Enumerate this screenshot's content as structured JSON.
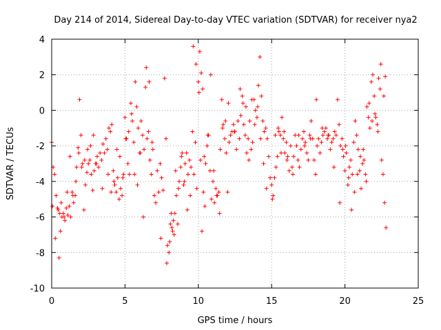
{
  "chart_data": {
    "type": "scatter",
    "title": "Day 214 of 2014, Sidereal Day-to-day VTEC variation (SDTVAR) for receiver nya2",
    "xlabel": "GPS time / hours",
    "ylabel": "SDTVAR / TECUs",
    "xlim": [
      0,
      25
    ],
    "ylim": [
      -10,
      4
    ],
    "xticks": [
      0,
      5,
      10,
      15,
      20,
      25
    ],
    "yticks": [
      -10,
      -8,
      -6,
      -4,
      -2,
      0,
      2,
      4
    ],
    "xtick_labels": [
      "0",
      "5",
      "10",
      "15",
      "20",
      "25"
    ],
    "ytick_labels": [
      "-10",
      "-8",
      "-6",
      "-4",
      "-2",
      "0",
      "2",
      "4"
    ],
    "grid": true,
    "marker": "+",
    "color": "#ff0000",
    "series": [
      {
        "name": "SDTVAR",
        "x": [
          0.0,
          0.1,
          0.2,
          0.3,
          0.4,
          0.5,
          0.6,
          0.7,
          0.8,
          0.9,
          1.0,
          1.1,
          1.2,
          1.3,
          1.4,
          1.5,
          1.6,
          1.7,
          1.8,
          1.9,
          2.0,
          2.1,
          2.2,
          2.3,
          2.4,
          2.5,
          2.6,
          2.7,
          2.8,
          2.9,
          3.0,
          3.1,
          3.2,
          3.3,
          3.4,
          3.5,
          3.6,
          3.7,
          3.8,
          3.9,
          4.0,
          4.1,
          4.2,
          4.3,
          4.4,
          4.5,
          4.6,
          4.7,
          4.8,
          4.9,
          5.0,
          5.1,
          5.2,
          5.3,
          5.4,
          5.5,
          5.6,
          5.7,
          5.8,
          5.9,
          6.0,
          6.1,
          6.2,
          6.3,
          6.4,
          6.5,
          6.6,
          6.7,
          6.8,
          6.9,
          7.0,
          7.1,
          7.2,
          7.3,
          7.4,
          7.5,
          7.6,
          7.7,
          7.8,
          7.9,
          8.0,
          8.1,
          8.2,
          8.3,
          8.4,
          8.5,
          8.6,
          8.7,
          8.8,
          8.9,
          9.0,
          9.1,
          9.2,
          9.3,
          9.4,
          9.5,
          9.6,
          9.7,
          9.8,
          9.9,
          10.0,
          10.1,
          10.2,
          10.3,
          10.4,
          10.5,
          10.6,
          10.7,
          10.8,
          10.9,
          11.0,
          11.1,
          11.2,
          11.3,
          11.4,
          11.5,
          11.6,
          11.7,
          11.8,
          11.9,
          12.0,
          12.1,
          12.2,
          12.3,
          12.4,
          12.5,
          12.6,
          12.7,
          12.8,
          12.9,
          13.0,
          13.1,
          13.2,
          13.3,
          13.4,
          13.5,
          13.6,
          13.7,
          13.8,
          13.9,
          14.0,
          14.1,
          14.2,
          14.3,
          14.4,
          14.5,
          14.6,
          14.7,
          14.8,
          14.9,
          15.0,
          15.1,
          15.2,
          15.3,
          15.4,
          15.5,
          15.6,
          15.7,
          15.8,
          15.9,
          16.0,
          16.1,
          16.2,
          16.3,
          16.4,
          16.5,
          16.6,
          16.7,
          16.8,
          16.9,
          17.0,
          17.1,
          17.2,
          17.3,
          17.4,
          17.5,
          17.6,
          17.7,
          17.8,
          17.9,
          18.0,
          18.1,
          18.2,
          18.3,
          18.4,
          18.5,
          18.6,
          18.7,
          18.8,
          18.9,
          19.0,
          19.1,
          19.2,
          19.3,
          19.4,
          19.5,
          19.6,
          19.7,
          19.8,
          19.9,
          20.0,
          20.1,
          20.2,
          20.3,
          20.4,
          20.5,
          20.6,
          20.7,
          20.8,
          20.9,
          21.0,
          21.1,
          21.2,
          21.3,
          21.4,
          21.5,
          21.6,
          21.7,
          21.8,
          21.9,
          22.0,
          22.1,
          22.2,
          22.3,
          22.4,
          22.5,
          22.6,
          22.7,
          22.8,
          0.05,
          0.25,
          0.45,
          0.55,
          0.65,
          0.85,
          1.05,
          1.25,
          1.45,
          1.65,
          1.85,
          2.05,
          2.25,
          2.45,
          2.65,
          2.85,
          3.05,
          3.45,
          3.85,
          4.05,
          4.25,
          4.45,
          4.65,
          4.85,
          5.05,
          5.25,
          5.45,
          5.65,
          5.85,
          6.05,
          6.25,
          6.45,
          6.65,
          6.85,
          7.45,
          7.85,
          8.05,
          8.15,
          8.25,
          8.35,
          8.45,
          8.65,
          8.85,
          9.05,
          9.25,
          9.45,
          9.65,
          9.85,
          10.05,
          10.15,
          10.25,
          10.35,
          10.45,
          10.65,
          10.85,
          11.05,
          11.25,
          11.45,
          11.65,
          11.85,
          12.05,
          12.45,
          12.85,
          13.05,
          13.25,
          13.45,
          13.65,
          13.85,
          14.05,
          14.25,
          14.45,
          14.65,
          15.05,
          15.25,
          15.45,
          15.65,
          15.85,
          16.05,
          16.45,
          16.85,
          17.25,
          17.65,
          18.05,
          18.45,
          18.85,
          19.25,
          19.65,
          19.85,
          20.05,
          20.25,
          20.45,
          20.65,
          20.85,
          21.05,
          21.25,
          21.45,
          21.65,
          21.85,
          22.05,
          22.25,
          22.45,
          22.65,
          22.75
        ],
        "y": [
          -1.8,
          -3.2,
          -3.6,
          -4.8,
          -5.5,
          -8.3,
          -6.8,
          -6.0,
          -5.8,
          -6.2,
          -5.5,
          -5.9,
          -5.4,
          -6.0,
          -4.6,
          -5.2,
          -4.8,
          -3.2,
          -2.1,
          0.6,
          -1.4,
          -3.0,
          -5.6,
          -4.2,
          -3.5,
          -3.0,
          -2.8,
          -3.6,
          -4.5,
          -3.4,
          -3.0,
          -2.6,
          -3.2,
          -2.4,
          -2.8,
          -1.9,
          -2.4,
          -1.6,
          -2.2,
          -1.0,
          -1.2,
          -0.8,
          -3.4,
          -4.2,
          -4.6,
          -3.8,
          -5.0,
          -4.4,
          -4.8,
          -3.6,
          -0.4,
          -1.6,
          -3.0,
          -3.6,
          0.4,
          -0.6,
          -1.8,
          1.6,
          0.2,
          -1.0,
          -2.4,
          -0.6,
          -1.4,
          -2.2,
          1.3,
          -1.6,
          -1.2,
          -2.8,
          -3.6,
          -2.2,
          -4.8,
          -5.2,
          -3.4,
          -4.6,
          -3.0,
          -3.8,
          -4.5,
          1.8,
          -1.6,
          -7.6,
          -8.0,
          -6.4,
          -6.6,
          -6.2,
          -5.8,
          -4.8,
          -6.4,
          -4.0,
          -3.2,
          -2.4,
          -4.2,
          -3.0,
          -2.4,
          -3.6,
          -2.8,
          -3.2,
          -1.2,
          -3.6,
          -1.8,
          -4.4,
          1.6,
          3.3,
          2.1,
          1.2,
          -2.6,
          -3.0,
          -2.0,
          -1.4,
          -3.4,
          -5.0,
          -4.0,
          -5.2,
          -4.4,
          -4.8,
          -4.6,
          -2.2,
          0.6,
          -0.8,
          -1.6,
          -2.4,
          -4.6,
          -1.8,
          -1.4,
          -1.2,
          -0.8,
          -1.2,
          -2.2,
          -0.6,
          -1.6,
          -0.3,
          0.8,
          -0.8,
          -1.4,
          -2.4,
          -1.6,
          -0.6,
          -2.2,
          -1.8,
          0.6,
          0.0,
          -0.4,
          1.4,
          3.0,
          0.8,
          -0.6,
          -1.2,
          -1.0,
          -1.6,
          -2.6,
          -3.8,
          -4.2,
          -4.8,
          -3.8,
          -3.2,
          -2.6,
          -1.2,
          -1.4,
          -0.4,
          -1.6,
          -2.4,
          -1.8,
          -2.6,
          -3.4,
          -2.0,
          -3.2,
          -2.6,
          -1.4,
          -2.0,
          -2.8,
          -3.2,
          -2.2,
          -1.6,
          -1.2,
          -1.8,
          -2.4,
          -2.8,
          -1.4,
          -0.6,
          -1.6,
          -2.8,
          -3.6,
          -2.0,
          -1.6,
          -2.4,
          -1.8,
          -1.4,
          -1.2,
          -1.0,
          -1.6,
          -1.4,
          -2.2,
          -1.8,
          -1.6,
          -1.2,
          -1.4,
          0.6,
          -0.8,
          -2.0,
          -1.6,
          -2.6,
          -3.4,
          -2.4,
          -4.2,
          -3.2,
          -2.8,
          -3.6,
          -1.8,
          -0.6,
          -1.4,
          -2.2,
          -3.4,
          -4.4,
          -3.0,
          -2.8,
          -3.6,
          0.2,
          -0.4,
          -1.0,
          1.6,
          2.0,
          0.8,
          -0.4,
          -0.8,
          1.8,
          1.2,
          -2.8,
          -3.6,
          -5.2,
          -6.6,
          -5.4,
          -7.2,
          -5.6,
          -5.8,
          -5.2,
          -6.0,
          -4.6,
          -2.6,
          -4.8,
          -4.0,
          -2.4,
          -3.2,
          -2.8,
          -2.2,
          -2.0,
          -1.4,
          -3.0,
          -4.4,
          -3.6,
          -4.6,
          -4.0,
          -2.2,
          -2.6,
          -3.8,
          -1.6,
          -1.2,
          -0.2,
          -3.6,
          -4.2,
          -2.4,
          -6.0,
          2.4,
          1.6,
          -1.8,
          -7.2,
          -8.6,
          -7.4,
          -5.8,
          -6.8,
          -7.0,
          -3.4,
          -4.4,
          -2.6,
          -4.0,
          -5.6,
          -4.8,
          3.6,
          2.6,
          1.0,
          -2.8,
          -6.8,
          -4.6,
          -5.4,
          -1.4,
          2.0,
          -3.4,
          -4.8,
          -5.8,
          -1.0,
          -0.6,
          0.4,
          -1.2,
          1.2,
          0.4,
          0.2,
          -2.8,
          0.6,
          -0.8,
          0.2,
          -1.6,
          -3.0,
          -4.4,
          -5.0,
          -1.4,
          -1.0,
          -2.4,
          -1.2,
          -2.8,
          -3.6,
          -1.4,
          -2.0,
          -1.6,
          0.6,
          -1.0,
          -1.4,
          -3.2,
          -5.2,
          -2.2,
          -2.0,
          -3.8,
          -5.6,
          -4.6,
          -3.6,
          -2.6,
          -2.2,
          -4.0,
          0.4,
          -0.6,
          -0.2,
          -1.2,
          2.6,
          0.8,
          1.9
        ]
      }
    ]
  }
}
